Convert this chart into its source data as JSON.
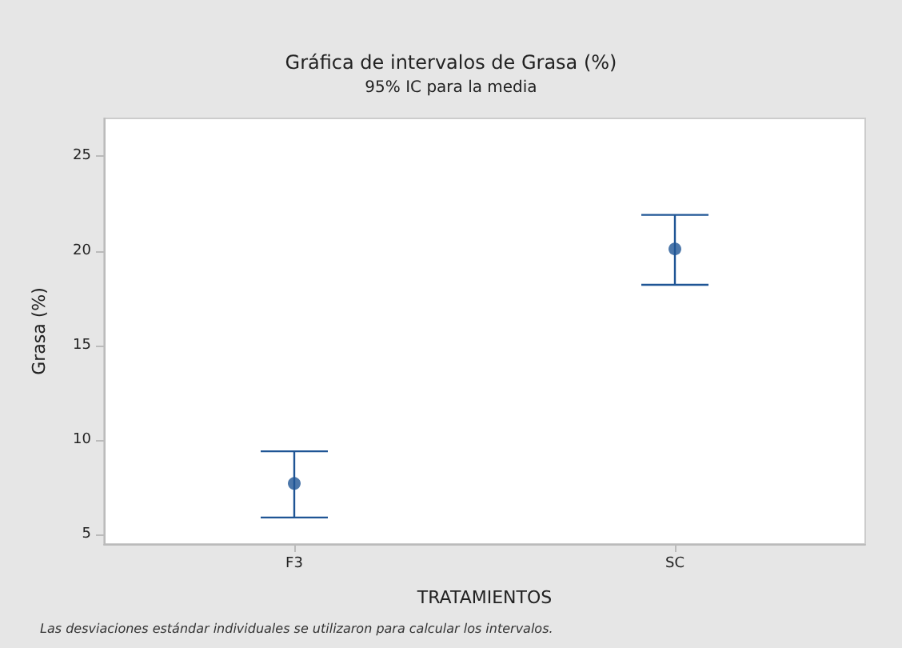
{
  "chart_data": {
    "type": "scatter",
    "title": "Gráfica de intervalos de Grasa (%)",
    "subtitle": "95% IC para la media",
    "xlabel": "TRATAMIENTOS",
    "ylabel": "Grasa (%)",
    "categories": [
      "F3",
      "SC"
    ],
    "values": [
      7.7,
      20.1
    ],
    "errors": [
      [
        5.9,
        9.4
      ],
      [
        18.2,
        21.9
      ]
    ],
    "color": "#1f5595",
    "ylim": [
      4.5,
      27
    ],
    "yticks": [
      5,
      10,
      15,
      20,
      25
    ],
    "grid": false,
    "annotations": [
      "Las desviaciones estándar individuales se utilizaron para calcular los intervalos."
    ]
  }
}
